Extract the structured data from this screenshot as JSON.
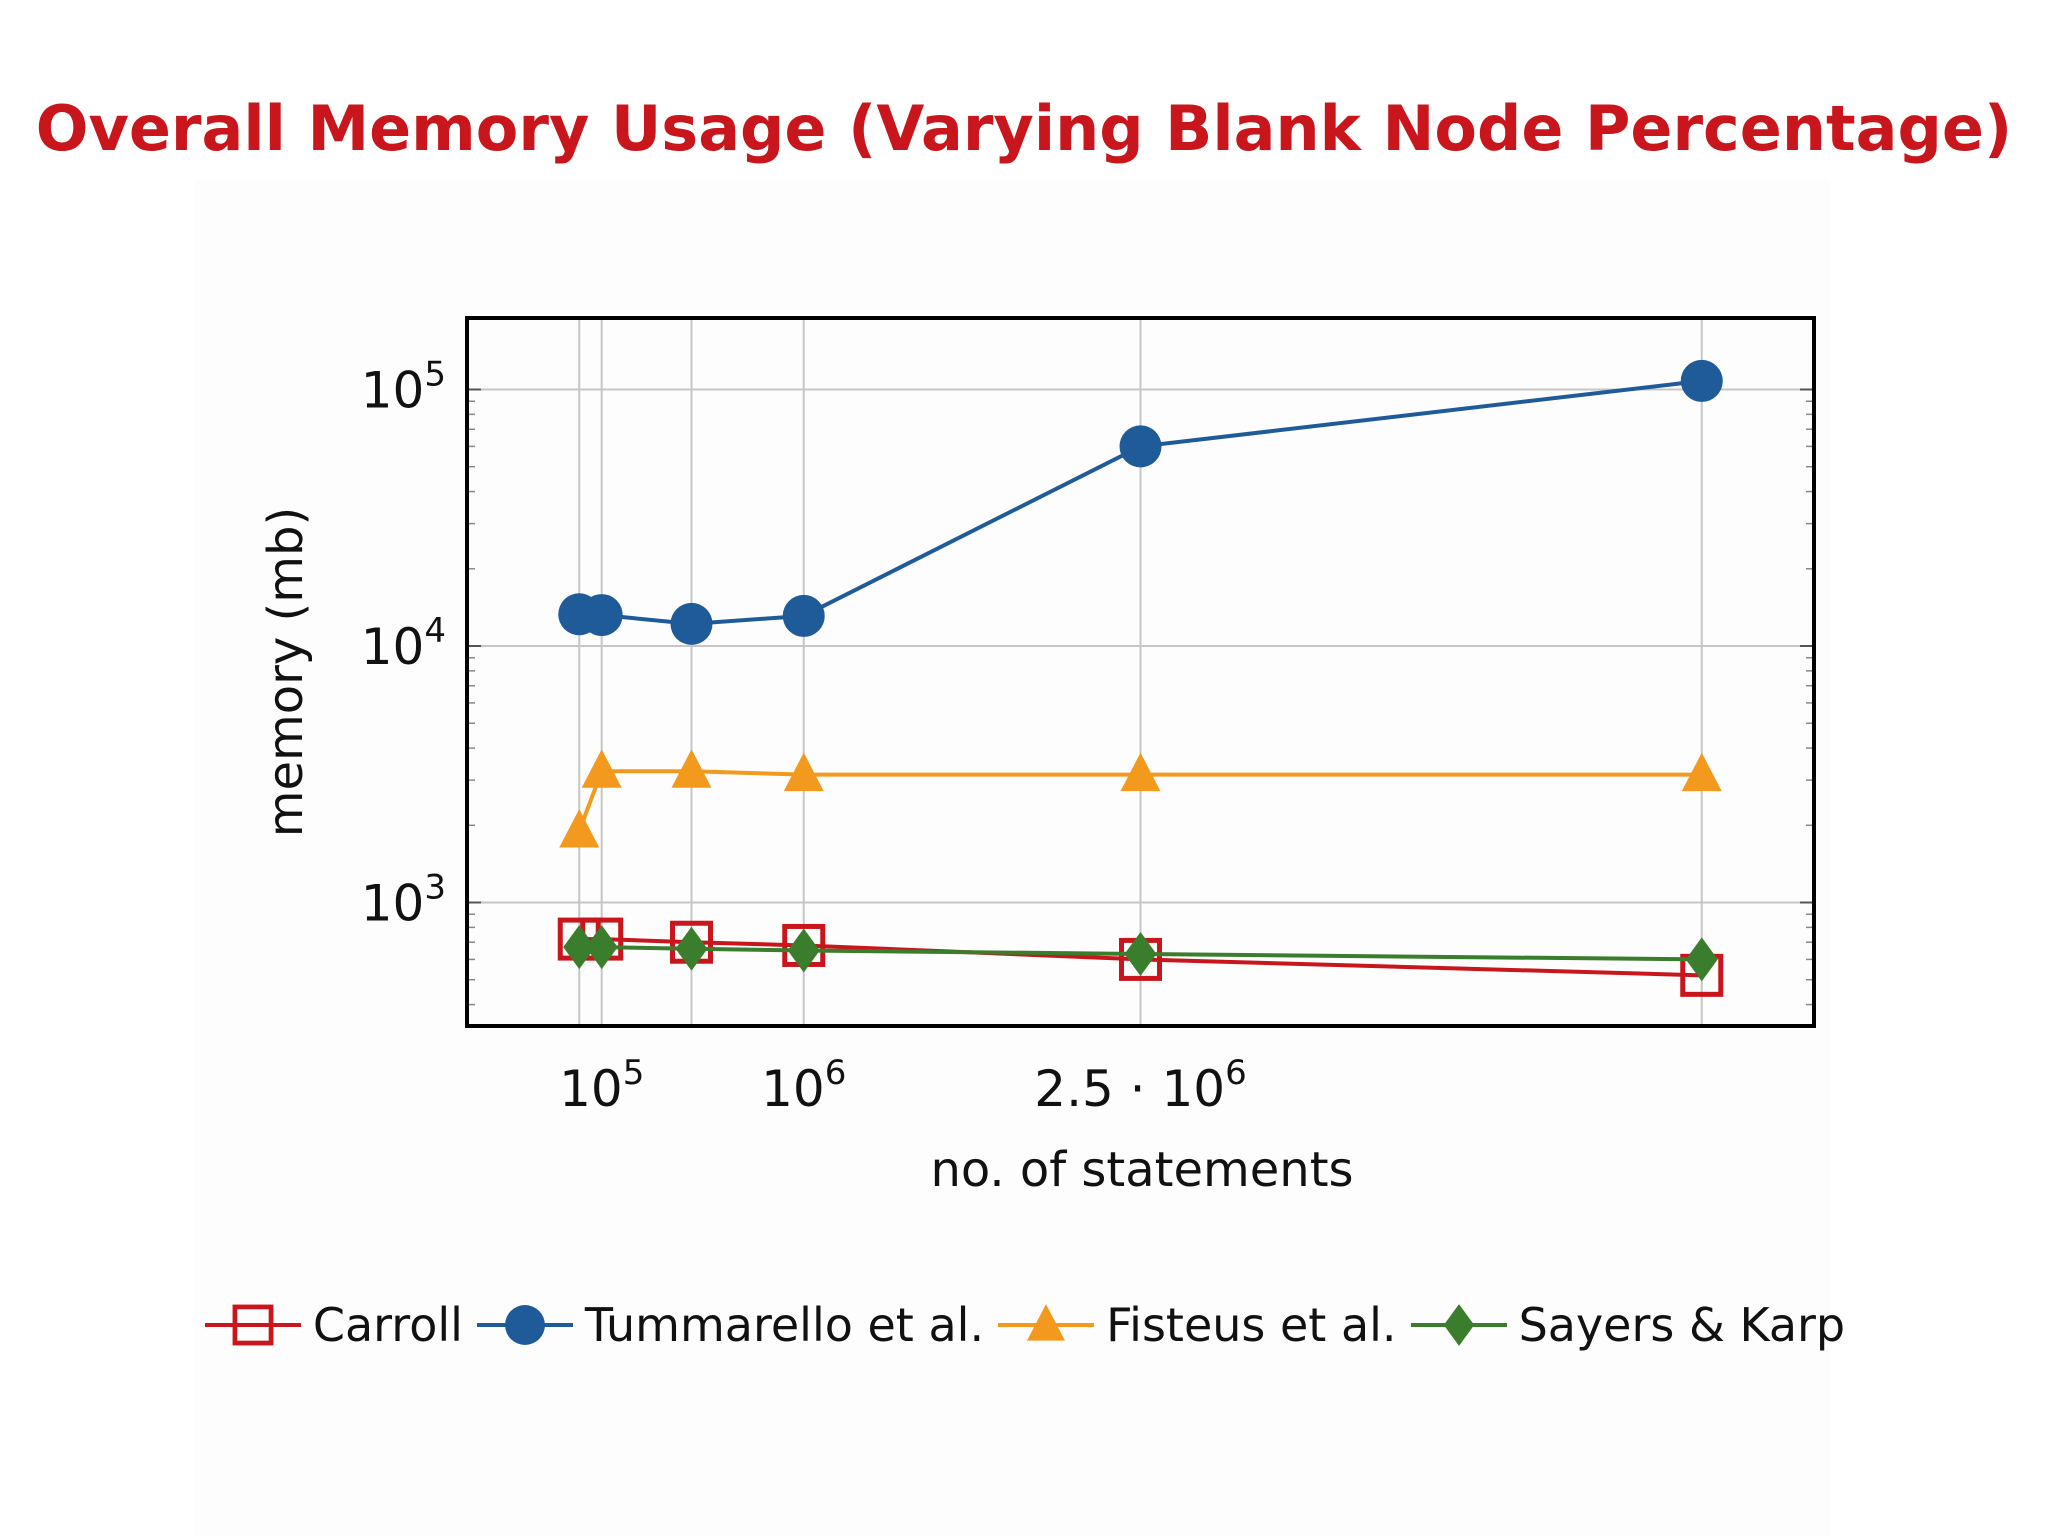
{
  "title": "Overall Memory Usage (Varying Blank Node Percentage)",
  "chart_data": {
    "type": "line",
    "xlabel": "no. of statements",
    "ylabel": "memory (mb)",
    "x_tick_labels": [
      {
        "x": 100000,
        "base": "10",
        "exp": "5"
      },
      {
        "x": 1000000,
        "base": "10",
        "exp": "6"
      },
      {
        "x": 2500000,
        "base": "2.5 · 10",
        "exp": "6"
      }
    ],
    "y_tick_labels": [
      {
        "y": 1000,
        "base": "10",
        "exp": "3"
      },
      {
        "y": 10000,
        "base": "10",
        "exp": "4"
      },
      {
        "y": 100000,
        "base": "10",
        "exp": "5"
      }
    ],
    "xlim": [
      -500000,
      5500000
    ],
    "ylim": [
      330,
      190000
    ],
    "y_scale": "log",
    "grid": true,
    "legend_position": "bottom",
    "series": [
      {
        "name": "Carroll",
        "color": "#c8161c",
        "marker": "square-open",
        "points": [
          [
            0,
            720
          ],
          [
            100000,
            720
          ],
          [
            500000,
            700
          ],
          [
            1000000,
            680
          ],
          [
            2500000,
            600
          ],
          [
            5000000,
            520
          ]
        ]
      },
      {
        "name": "Tummarello et al.",
        "color": "#1f5a99",
        "marker": "circle",
        "points": [
          [
            0,
            13300
          ],
          [
            100000,
            13200
          ],
          [
            500000,
            12200
          ],
          [
            1000000,
            13100
          ],
          [
            2500000,
            60000
          ],
          [
            5000000,
            108000
          ]
        ]
      },
      {
        "name": "Fisteus et al.",
        "color": "#f39a1e",
        "marker": "triangle",
        "points": [
          [
            0,
            1900
          ],
          [
            100000,
            3250
          ],
          [
            500000,
            3250
          ],
          [
            1000000,
            3150
          ],
          [
            2500000,
            3150
          ],
          [
            5000000,
            3150
          ]
        ]
      },
      {
        "name": "Sayers & Karp",
        "color": "#3a7d2c",
        "marker": "diamond",
        "points": [
          [
            0,
            670
          ],
          [
            100000,
            670
          ],
          [
            500000,
            660
          ],
          [
            1000000,
            650
          ],
          [
            2500000,
            630
          ],
          [
            5000000,
            600
          ]
        ]
      }
    ]
  }
}
